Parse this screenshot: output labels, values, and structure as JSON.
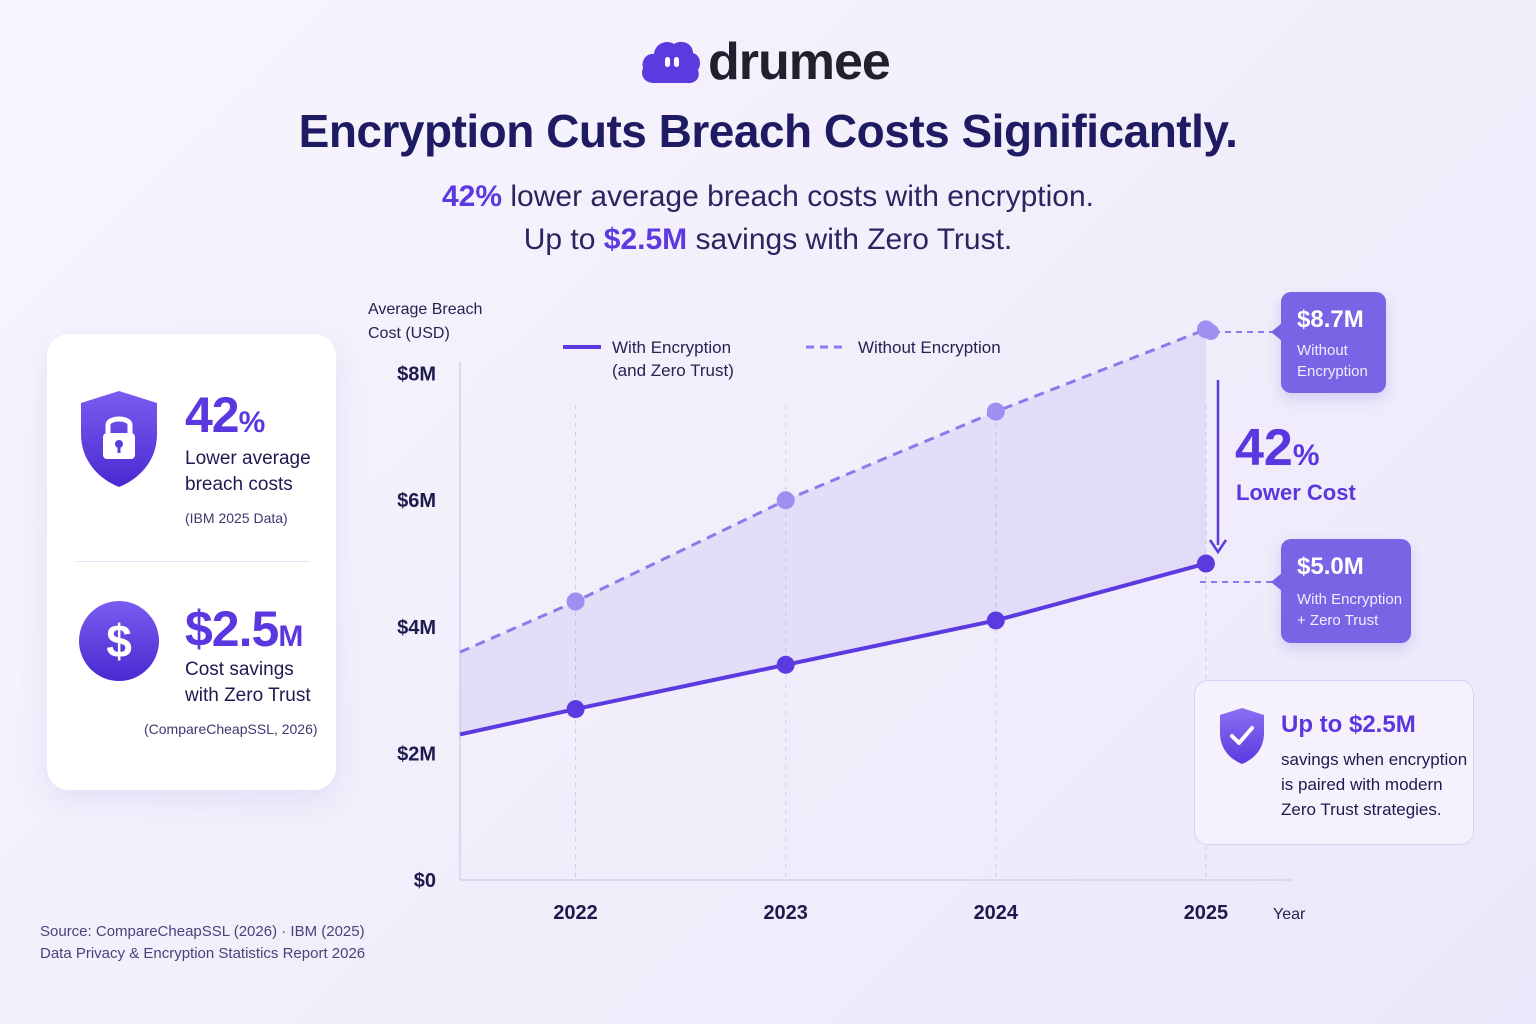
{
  "brand": {
    "name": "drumee"
  },
  "title": "Encryption Cuts Breach Costs Significantly.",
  "subtitle": {
    "line1_highlight": "42%",
    "line1_rest": " lower average breach costs with encryption.",
    "line2_prefix": "Up to ",
    "line2_highlight": "$2.5M",
    "line2_rest": " savings with Zero Trust."
  },
  "stats_card": {
    "stat1": {
      "value": "42",
      "unit": "%",
      "label_line1": "Lower average",
      "label_line2": "breach costs",
      "source": "(IBM 2025 Data)",
      "icon": "shield-lock-icon"
    },
    "stat2": {
      "value": "$2.5",
      "unit": "M",
      "label_line1": "Cost savings",
      "label_line2": "with Zero Trust",
      "source": "(CompareCheapSSL, 2026)",
      "icon": "dollar-icon"
    }
  },
  "source_note": {
    "line1": "Source: CompareCheapSSL (2026) · IBM (2025)",
    "line2": "Data Privacy & Encryption Statistics Report 2026"
  },
  "chart_data": {
    "type": "line",
    "ylabel_line1": "Average Breach",
    "ylabel_line2": "Cost (USD)",
    "xlabel": "Year",
    "y_ticks": [
      {
        "value": 0,
        "label": "$0"
      },
      {
        "value": 2,
        "label": "$2M"
      },
      {
        "value": 4,
        "label": "$4M"
      },
      {
        "value": 6,
        "label": "$6M"
      },
      {
        "value": 8,
        "label": "$8M"
      }
    ],
    "x_ticks": [
      {
        "value": 2022,
        "label": "2022"
      },
      {
        "value": 2023,
        "label": "2023"
      },
      {
        "value": 2024,
        "label": "2024"
      },
      {
        "value": 2025,
        "label": "2025"
      }
    ],
    "xlim": [
      2021.45,
      2025.5
    ],
    "ylim": [
      0,
      8.8
    ],
    "grid": "vertical-dashed",
    "legend_position": "top",
    "series": [
      {
        "name_line1": "With Encryption",
        "name_line2": "(and Zero Trust)",
        "style": "solid",
        "color": "#5b3ae0",
        "start": [
          2021.45,
          2.3
        ],
        "points": [
          [
            2022,
            2.7
          ],
          [
            2023,
            3.4
          ],
          [
            2024,
            4.1
          ],
          [
            2025,
            5.0
          ]
        ]
      },
      {
        "name_line1": "Without Encryption",
        "style": "dashed",
        "color": "#8f78ea",
        "start": [
          2021.45,
          3.6
        ],
        "points": [
          [
            2022,
            4.4
          ],
          [
            2023,
            6.0
          ],
          [
            2024,
            7.4
          ],
          [
            2025,
            8.7
          ]
        ]
      }
    ],
    "annotations": {
      "top_value": "$8.7M",
      "top_desc_line1": "Without",
      "top_desc_line2": "Encryption",
      "bottom_value": "$5.0M",
      "bottom_desc_line1": "With Encryption",
      "bottom_desc_line2": "+ Zero Trust",
      "gap_value": "42",
      "gap_unit": "%",
      "gap_label": "Lower Cost"
    }
  },
  "savings_box": {
    "heading": "Up to $2.5M",
    "line1": "savings when encryption",
    "line2": "is paired with modern",
    "line3": "Zero Trust strategies.",
    "icon": "shield-check-icon"
  },
  "colors": {
    "accent": "#5a37df",
    "accent_light": "#8f78ea",
    "navy": "#1f1b63",
    "background": "#f3f0fc"
  }
}
